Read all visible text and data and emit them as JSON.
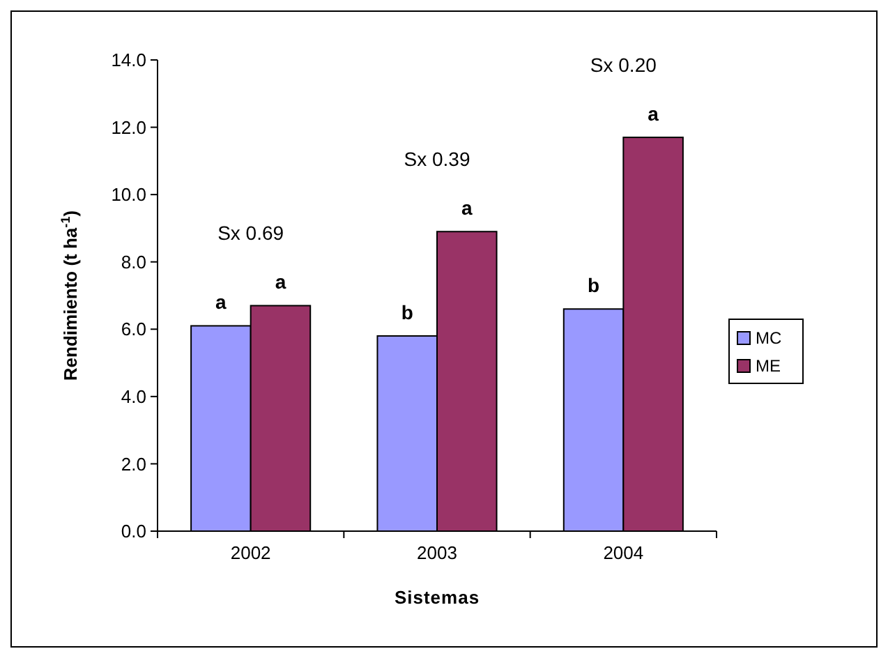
{
  "chart_data": {
    "type": "bar",
    "xlabel": "Sistemas",
    "ylabel": "Rendimiento (t ha$^{-1}$)",
    "categories": [
      "2002",
      "2003",
      "2004"
    ],
    "series": [
      {
        "name": "MC",
        "color": "#9999ff",
        "values": [
          6.1,
          5.8,
          6.6
        ],
        "value_labels": [
          "a",
          "b",
          "b"
        ]
      },
      {
        "name": "ME",
        "color": "#993366",
        "values": [
          6.7,
          8.9,
          11.7
        ],
        "value_labels": [
          "a",
          "a",
          "a"
        ]
      }
    ],
    "ylim": [
      0,
      14
    ],
    "yticks": [
      {
        "value": 0,
        "label": "0.0"
      },
      {
        "value": 2,
        "label": "2.0"
      },
      {
        "value": 4,
        "label": "4.0"
      },
      {
        "value": 6,
        "label": "6.0"
      },
      {
        "value": 8,
        "label": "8.0"
      },
      {
        "value": 10,
        "label": "10.0"
      },
      {
        "value": 12,
        "label": "12.0"
      },
      {
        "value": 14,
        "label": "14.0"
      }
    ],
    "annotations": [
      "Sx 0.69",
      "Sx 0.39",
      "Sx 0.20"
    ],
    "grid": false,
    "legend": "right"
  }
}
